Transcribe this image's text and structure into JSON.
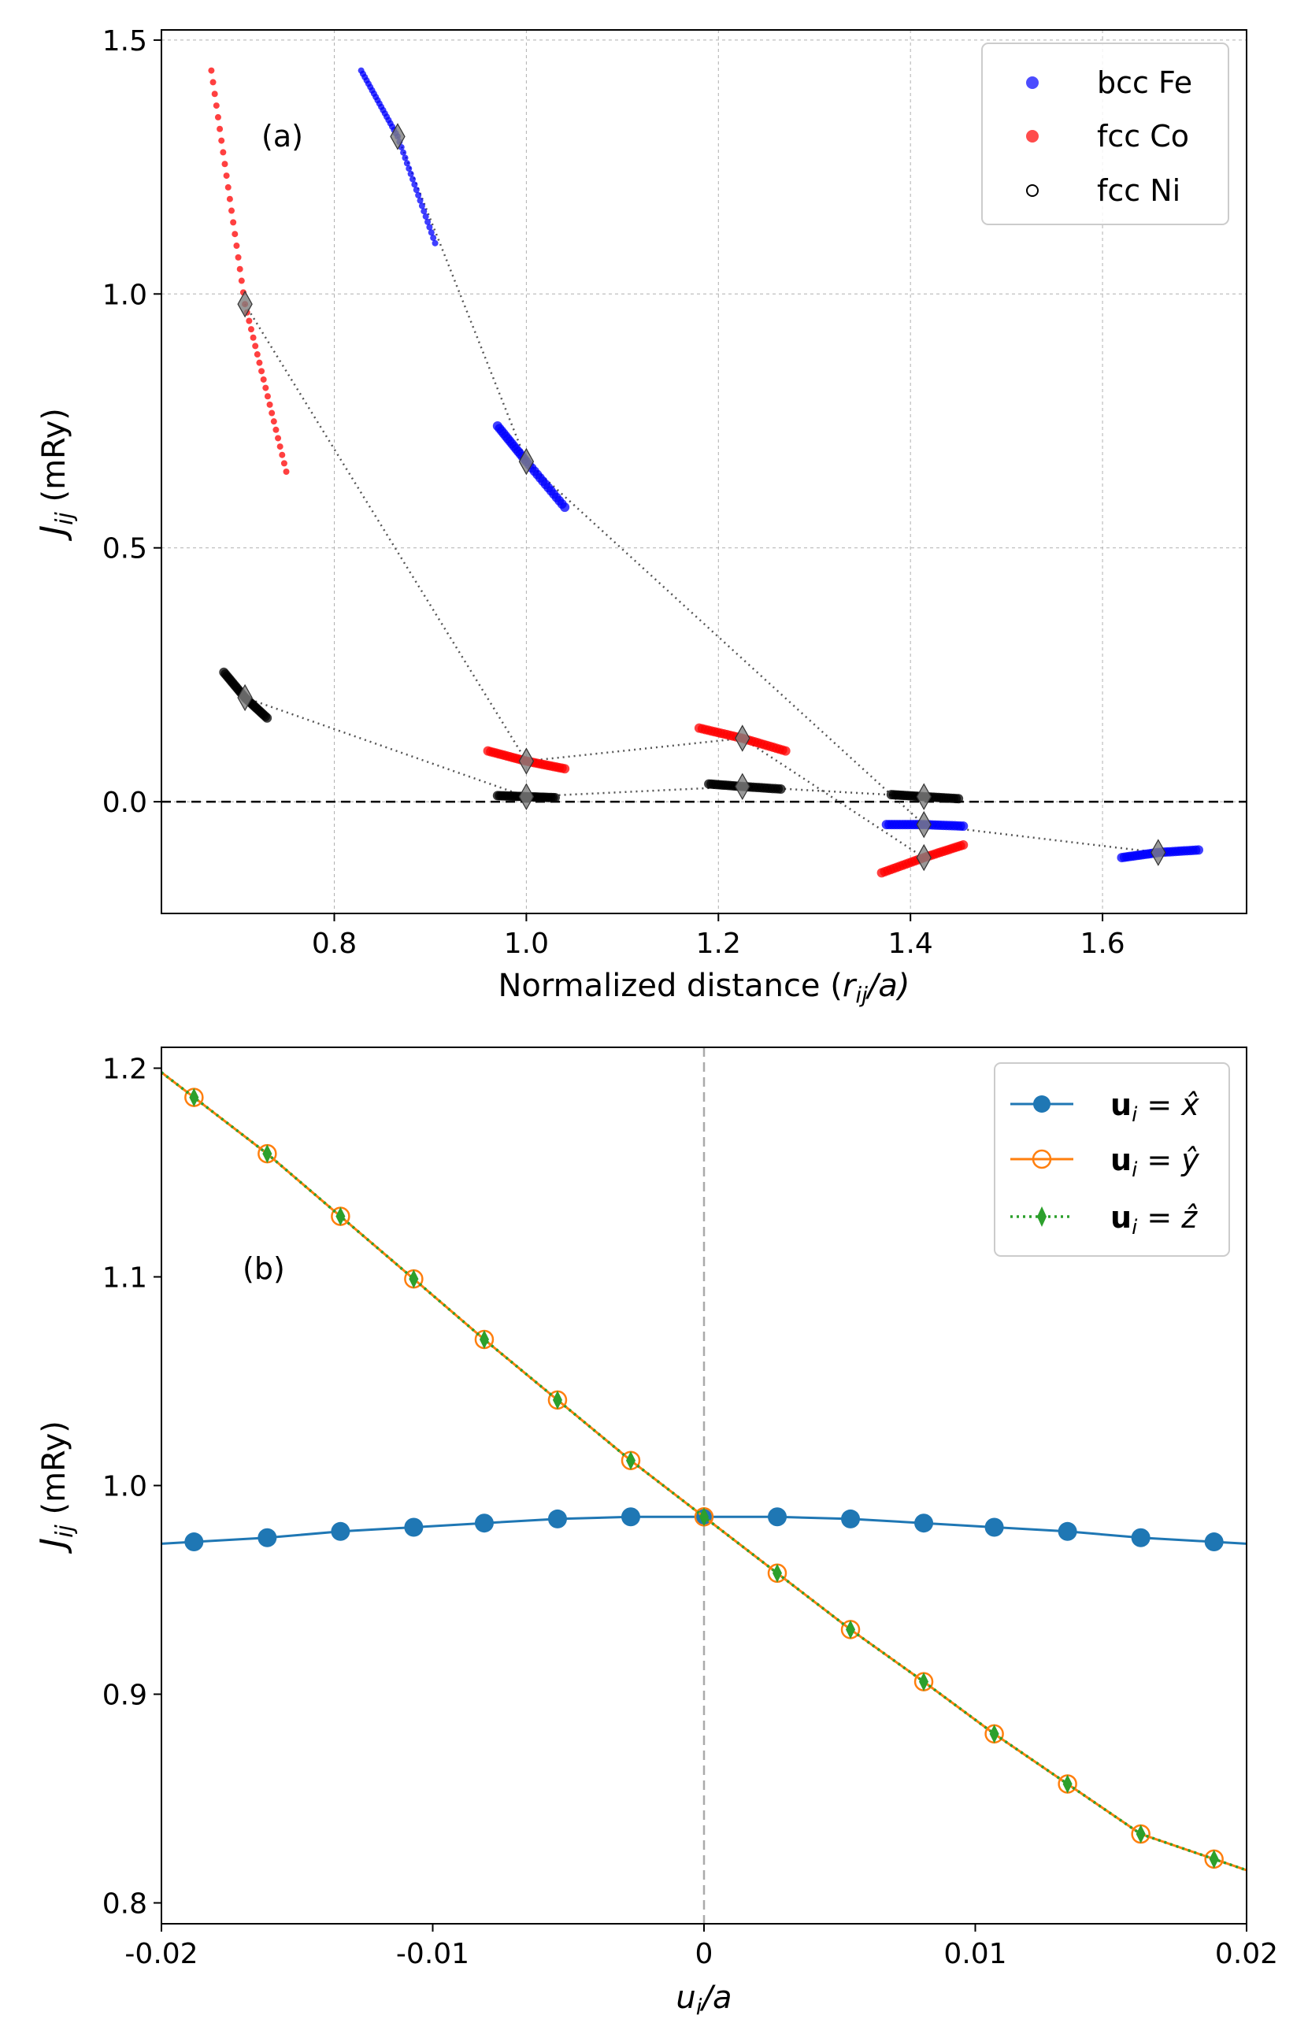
{
  "chart_data": [
    {
      "type": "scatter",
      "panel_label": "(a)",
      "xlabel": "Normalized distance (r_ij/a)",
      "xlabel_parts": {
        "prefix": "Normalized distance (",
        "var": "r",
        "sub": "ij",
        "suffix": "/a)"
      },
      "ylabel": "J_ij (mRy)",
      "ylabel_parts": {
        "var": "J",
        "sub": "ij",
        "unit": " (mRy)"
      },
      "xlim": [
        0.62,
        1.75
      ],
      "ylim": [
        -0.22,
        1.52
      ],
      "xticks": [
        0.8,
        1.0,
        1.2,
        1.4,
        1.6
      ],
      "xtick_labels": [
        "0.8",
        "1.0",
        "1.2",
        "1.4",
        "1.6"
      ],
      "yticks": [
        0.0,
        0.5,
        1.0,
        1.5
      ],
      "ytick_labels": [
        "0.0",
        "0.5",
        "1.0",
        "1.5"
      ],
      "grid": true,
      "hline": 0.0,
      "legend_position": "top-right",
      "series": [
        {
          "name": "bcc Fe",
          "color": "#0000ff",
          "segments": [
            {
              "x": [
                0.828,
                0.866,
                0.905
              ],
              "y": [
                1.44,
                1.31,
                1.1
              ],
              "center": [
                0.866,
                1.31
              ]
            },
            {
              "x": [
                0.97,
                1.0,
                1.04
              ],
              "y": [
                0.74,
                0.67,
                0.58
              ],
              "center": [
                1.0,
                0.67
              ]
            },
            {
              "x": [
                1.375,
                1.414,
                1.455
              ],
              "y": [
                -0.045,
                -0.045,
                -0.048
              ],
              "center": [
                1.414,
                -0.045
              ]
            },
            {
              "x": [
                1.62,
                1.658,
                1.7
              ],
              "y": [
                -0.11,
                -0.1,
                -0.095
              ],
              "center": [
                1.658,
                -0.1
              ]
            }
          ]
        },
        {
          "name": "fcc Co",
          "color": "#ff0000",
          "segments": [
            {
              "x": [
                0.672,
                0.707,
                0.75
              ],
              "y": [
                1.44,
                0.98,
                0.65
              ],
              "center": [
                0.707,
                0.98
              ]
            },
            {
              "x": [
                0.96,
                1.0,
                1.04
              ],
              "y": [
                0.1,
                0.08,
                0.065
              ],
              "center": [
                1.0,
                0.08
              ]
            },
            {
              "x": [
                1.18,
                1.225,
                1.27
              ],
              "y": [
                0.145,
                0.125,
                0.1
              ],
              "center": [
                1.225,
                0.125
              ]
            },
            {
              "x": [
                1.37,
                1.414,
                1.455
              ],
              "y": [
                -0.14,
                -0.11,
                -0.085
              ],
              "center": [
                1.414,
                -0.11
              ]
            }
          ]
        },
        {
          "name": "fcc Ni",
          "color": "#000000",
          "segments": [
            {
              "x": [
                0.685,
                0.707,
                0.73
              ],
              "y": [
                0.255,
                0.205,
                0.165
              ],
              "center": [
                0.707,
                0.205
              ]
            },
            {
              "x": [
                0.97,
                1.0,
                1.03
              ],
              "y": [
                0.012,
                0.01,
                0.008
              ],
              "center": [
                1.0,
                0.01
              ]
            },
            {
              "x": [
                1.19,
                1.225,
                1.265
              ],
              "y": [
                0.035,
                0.03,
                0.025
              ],
              "center": [
                1.225,
                0.03
              ]
            },
            {
              "x": [
                1.38,
                1.414,
                1.45
              ],
              "y": [
                0.014,
                0.01,
                0.006
              ],
              "center": [
                1.414,
                0.01
              ]
            }
          ]
        }
      ]
    },
    {
      "type": "line",
      "panel_label": "(b)",
      "xlabel": "u_i/a",
      "xlabel_parts": {
        "var": "u",
        "sub": "i",
        "suffix": "/a"
      },
      "ylabel": "J_ij (mRy)",
      "ylabel_parts": {
        "var": "J",
        "sub": "ij",
        "unit": " (mRy)"
      },
      "xlim": [
        -0.02,
        0.02
      ],
      "ylim": [
        0.79,
        1.21
      ],
      "xticks": [
        -0.02,
        -0.01,
        0,
        0.01,
        0.02
      ],
      "xtick_labels": [
        "-0.02",
        "-0.01",
        "0",
        "0.01",
        "0.02"
      ],
      "yticks": [
        0.8,
        0.9,
        1.0,
        1.1,
        1.2
      ],
      "ytick_labels": [
        "0.8",
        "0.9",
        "1.0",
        "1.1",
        "1.2"
      ],
      "grid": false,
      "vline": 0.0,
      "legend_position": "top-right",
      "x": [
        -0.0188,
        -0.0161,
        -0.0134,
        -0.0107,
        -0.0081,
        -0.0054,
        -0.0027,
        0.0,
        0.0027,
        0.0054,
        0.0081,
        0.0107,
        0.0134,
        0.0161,
        0.0188
      ],
      "series": [
        {
          "name": "u_i = x̂",
          "label_parts": {
            "vec": "u",
            "sub": "i",
            "eq": " = ",
            "hat": "x̂"
          },
          "color": "#1f77b4",
          "marker": "filled-circle",
          "line": "solid",
          "values": [
            0.973,
            0.975,
            0.978,
            0.98,
            0.982,
            0.984,
            0.985,
            0.985,
            0.985,
            0.984,
            0.982,
            0.98,
            0.978,
            0.975,
            0.973
          ]
        },
        {
          "name": "u_i = ŷ",
          "label_parts": {
            "vec": "u",
            "sub": "i",
            "eq": " = ",
            "hat": "ŷ"
          },
          "color": "#ff7f0e",
          "marker": "open-circle",
          "line": "solid",
          "values": [
            1.186,
            1.159,
            1.129,
            1.099,
            1.07,
            1.041,
            1.012,
            0.985,
            0.958,
            0.931,
            0.906,
            0.881,
            0.857,
            0.833,
            0.821
          ]
        },
        {
          "name": "u_i = ẑ",
          "label_parts": {
            "vec": "u",
            "sub": "i",
            "eq": " = ",
            "hat": "ẑ"
          },
          "color": "#2ca02c",
          "marker": "thin-diamond",
          "line": "dotted",
          "values": [
            1.186,
            1.159,
            1.129,
            1.099,
            1.07,
            1.041,
            1.012,
            0.985,
            0.958,
            0.931,
            0.906,
            0.881,
            0.857,
            0.833,
            0.821
          ]
        }
      ]
    }
  ]
}
